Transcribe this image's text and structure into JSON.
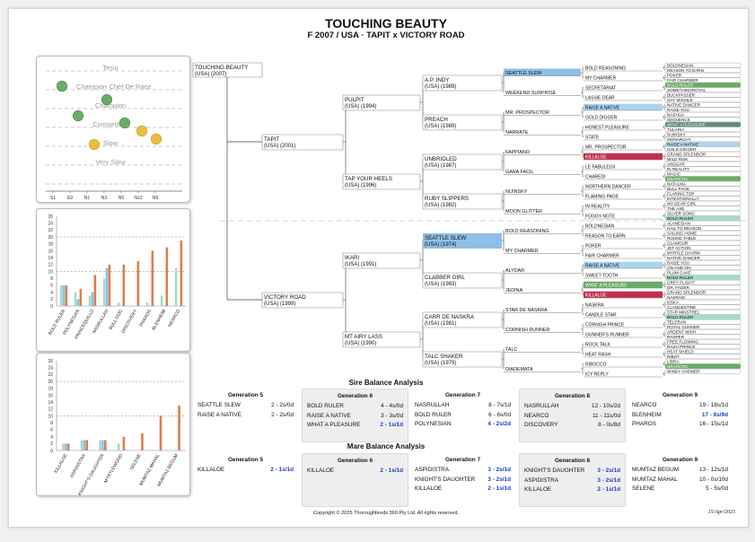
{
  "header": {
    "title": "TOUCHING BEAUTY",
    "subtitle": "F 2007 / USA · TAPIT x VICTORY ROAD"
  },
  "colors": {
    "blue": "#8fbfe6",
    "red": "#c0304e",
    "green": "#6aab66",
    "teal": "#5f8c7d",
    "mint": "#a6dbc6",
    "lightblue": "#a9d4f0",
    "orange": "#d9804a"
  },
  "scatter": {
    "levels": [
      "Tesio",
      "Champion",
      "Chef De Race",
      "Champion",
      "Competitive",
      "Slow",
      "Very Slow"
    ],
    "x_labels": [
      "S1",
      "E9",
      "N1",
      "N3",
      "N5",
      "N12",
      "N9"
    ],
    "points": [
      {
        "label": "S1",
        "level": "Champion",
        "color": "green"
      },
      {
        "label": "E9",
        "level": "Champion",
        "color": "green"
      },
      {
        "label": "N1",
        "level": "Champion",
        "color": "green"
      },
      {
        "label": "N3",
        "level": "Champion",
        "color": "green"
      },
      {
        "label": "N5",
        "level": "Competitive",
        "color": "yellow"
      },
      {
        "label": "N12",
        "level": "Competitive",
        "color": "yellow"
      },
      {
        "label": "N9",
        "level": "Competitive",
        "color": "yellow"
      }
    ]
  },
  "chart_data": [
    {
      "type": "bar",
      "title": "Sire Balance",
      "ylim": [
        0,
        26
      ],
      "yticks": [
        0,
        2,
        4,
        6,
        8,
        10,
        12,
        14,
        16,
        18,
        20,
        22,
        24,
        26
      ],
      "categories": [
        "BOLD RULER",
        "POLYNESIAN",
        "PRINCEQUILLO",
        "NASRULLAH",
        "BULL DOG",
        "DISCOVERY",
        "PHAROS",
        "BLENHEIM",
        "NEARCO"
      ],
      "series": [
        {
          "name": "s1",
          "color": "#a6dbc6",
          "values": [
            6,
            4,
            3,
            8,
            1,
            0,
            1,
            3,
            11
          ]
        },
        {
          "name": "s2",
          "color": "#8fbfe6",
          "values": [
            6,
            2,
            4,
            11,
            0,
            0,
            0,
            0,
            0
          ]
        },
        {
          "name": "s3",
          "color": "#d9804a",
          "values": [
            6,
            5,
            9,
            12,
            12,
            13,
            16,
            17,
            19
          ]
        }
      ]
    },
    {
      "type": "bar",
      "title": "Mare Balance",
      "ylim": [
        0,
        26
      ],
      "yticks": [
        0,
        2,
        4,
        6,
        8,
        10,
        12,
        14,
        16,
        18,
        20,
        22,
        24,
        26
      ],
      "categories": [
        "KILLALOE",
        "ASPIDISTRA",
        "KNIGHT'S DAUGHTER",
        "MYRTLEWOOD",
        "SELENE",
        "MUMTAZ MAHAL",
        "MUMTAZ BEGUM"
      ],
      "series": [
        {
          "name": "s1",
          "color": "#a6dbc6",
          "values": [
            2,
            3,
            3,
            2,
            0,
            0,
            0
          ]
        },
        {
          "name": "s2",
          "color": "#8fbfe6",
          "values": [
            2,
            3,
            3,
            0,
            0,
            0,
            0
          ]
        },
        {
          "name": "s3",
          "color": "#d9804a",
          "values": [
            2,
            3,
            3,
            4,
            5,
            10,
            13
          ]
        }
      ]
    }
  ],
  "pedigree": {
    "subject": {
      "name": "TOUCHING BEAUTY",
      "detail": "(USA) (2007)"
    },
    "g1": [
      {
        "name": "TAPIT",
        "detail": "(USA) (2001)"
      },
      {
        "name": "VICTORY ROAD",
        "detail": "(USA) (1999)"
      }
    ],
    "g2": [
      {
        "name": "PULPIT",
        "detail": "(USA) (1994)"
      },
      {
        "name": "TAP YOUR HEELS",
        "detail": "(USA) (1996)"
      },
      {
        "name": "IKARI",
        "detail": "(USA) (1991)"
      },
      {
        "name": "MT AIRY LASS",
        "detail": "(USA) (1990)"
      }
    ],
    "g3": [
      {
        "name": "A.P. INDY",
        "detail": "(USA) (1989)"
      },
      {
        "name": "PREACH",
        "detail": "(USA) (1989)"
      },
      {
        "name": "UNBRIDLED",
        "detail": "(USA) (1987)"
      },
      {
        "name": "RUBY SLIPPERS",
        "detail": "(USA) (1982)"
      },
      {
        "name": "SEATTLE SLEW",
        "detail": "(USA) (1974)",
        "hl": "blue"
      },
      {
        "name": "CLABBER GIRL",
        "detail": "(USA) (1983)"
      },
      {
        "name": "CARR DE NASKRA",
        "detail": "(USA) (1981)"
      },
      {
        "name": "TALC SHAKER",
        "detail": "(USA) (1979)"
      }
    ],
    "g4": [
      {
        "name": "SEATTLE SLEW",
        "hl": "blue"
      },
      {
        "name": "WEEKEND SURPRISE"
      },
      {
        "name": "MR. PROSPECTOR"
      },
      {
        "name": "NARRATE"
      },
      {
        "name": "FAPPIANO"
      },
      {
        "name": "GANA FACIL"
      },
      {
        "name": "NIJINSKY"
      },
      {
        "name": "MOON GLITTER"
      },
      {
        "name": "BOLD REASONING"
      },
      {
        "name": "MY CHARMER"
      },
      {
        "name": "ALYDAR"
      },
      {
        "name": "JEDINA"
      },
      {
        "name": "STAR DE NASKRA"
      },
      {
        "name": "CORNISH RUNNER"
      },
      {
        "name": "TALC"
      },
      {
        "name": "DIADEMATA"
      }
    ],
    "g5": [
      {
        "name": "BOLD REASONING"
      },
      {
        "name": "MY CHARMER"
      },
      {
        "name": "SECRETARIAT"
      },
      {
        "name": "LASSIE DEAR"
      },
      {
        "name": "RAISE A NATIVE",
        "hl": "lightblue"
      },
      {
        "name": "GOLD DIGGER"
      },
      {
        "name": "HONEST PLEASURE"
      },
      {
        "name": "STATE"
      },
      {
        "name": "MR. PROSPECTOR"
      },
      {
        "name": "KILLALOE",
        "hl": "red"
      },
      {
        "name": "LE FABULEUX"
      },
      {
        "name": "CHAREDI"
      },
      {
        "name": "NORTHERN DANCER"
      },
      {
        "name": "FLAMING PAGE"
      },
      {
        "name": "IN REALITY"
      },
      {
        "name": "FOGGY NOTE"
      },
      {
        "name": "BOLDNESIAN"
      },
      {
        "name": "REASON TO EARN"
      },
      {
        "name": "POKER"
      },
      {
        "name": "FAIR CHARMER"
      },
      {
        "name": "RAISE A NATIVE",
        "hl": "lightblue"
      },
      {
        "name": "SWEET TOOTH"
      },
      {
        "name": "WHAT A PLEASURE",
        "hl": "green"
      },
      {
        "name": "KILLALOE",
        "hl": "red"
      },
      {
        "name": "NASKRA"
      },
      {
        "name": "CANDLE STAR"
      },
      {
        "name": "CORNISH PRINCE"
      },
      {
        "name": "GUNNER'S RUNNER"
      },
      {
        "name": "ROCK TALK"
      },
      {
        "name": "HEAT RASH"
      },
      {
        "name": "RIBOCCO"
      },
      {
        "name": "ICY REPLY"
      }
    ],
    "g6": [
      {
        "name": "BOLDNESIAN"
      },
      {
        "name": "REASON TO EARN"
      },
      {
        "name": "POKER"
      },
      {
        "name": "FAIR CHARMER"
      },
      {
        "name": "BOLD RULER",
        "hl": "green"
      },
      {
        "name": "SOMETHINGROYAL"
      },
      {
        "name": "BUCKPASSER"
      },
      {
        "name": "GAY MISSILE"
      },
      {
        "name": "NATIVE DANCER"
      },
      {
        "name": "RAISE YOU"
      },
      {
        "name": "NASHUA"
      },
      {
        "name": "SEQUENCE"
      },
      {
        "name": "WHAT A PLEASURE",
        "hl": "teal"
      },
      {
        "name": "TULARIA"
      },
      {
        "name": "NIJINSKY"
      },
      {
        "name": "MONARCHY"
      },
      {
        "name": "RAISE A NATIVE",
        "hl": "lightblue"
      },
      {
        "name": "GOLD DIGGER"
      },
      {
        "name": "GRAND SPLENDOR"
      },
      {
        "name": "WILD RISK"
      },
      {
        "name": "ANGUAR"
      },
      {
        "name": "IN REALITY"
      },
      {
        "name": "MAGIC"
      },
      {
        "name": "NEARCTIC",
        "hl": "green"
      },
      {
        "name": "NATALMA"
      },
      {
        "name": "BULL PAGE"
      },
      {
        "name": "FLARING TOP"
      },
      {
        "name": "INTENTIONALLY"
      },
      {
        "name": "MY DEAR GIRL"
      },
      {
        "name": "THE AXE"
      },
      {
        "name": "SILVER SONG"
      },
      {
        "name": "BOLD RULER",
        "hl": "mint"
      },
      {
        "name": "ALANESIAN"
      },
      {
        "name": "HAIL TO REASON"
      },
      {
        "name": "SAILING HOME"
      },
      {
        "name": "ROUND TABLE"
      },
      {
        "name": "GLAMOUR"
      },
      {
        "name": "JET ACTION"
      },
      {
        "name": "MYRTLE CHARM"
      },
      {
        "name": "NATIVE DANCER"
      },
      {
        "name": "RAISE YOU"
      },
      {
        "name": "ON-AND-ON"
      },
      {
        "name": "PLUM CAKE"
      },
      {
        "name": "BOLD RULER",
        "hl": "mint"
      },
      {
        "name": "GREY FLIGHT"
      },
      {
        "name": "DR. FAGER"
      },
      {
        "name": "GRAND SPLENDOR"
      },
      {
        "name": "NASRAM"
      },
      {
        "name": "IIISKA"
      },
      {
        "name": "CLANDESTINE"
      },
      {
        "name": "STAR MINSTREL"
      },
      {
        "name": "BOLD RULER",
        "hl": "mint"
      },
      {
        "name": "TELERAN"
      },
      {
        "name": "ROYAL GUNNER"
      },
      {
        "name": "ARDENT WISH"
      },
      {
        "name": "RASPER"
      },
      {
        "name": "FREE FLOWING"
      },
      {
        "name": "RASH PRINCE"
      },
      {
        "name": "HEAT SHIELD"
      },
      {
        "name": "RIBOT"
      },
      {
        "name": "LIBRA"
      },
      {
        "name": "NEARCTIC",
        "hl": "green"
      },
      {
        "name": "WINDY ANSWER"
      }
    ]
  },
  "sire_balance": {
    "title": "Sire Balance Analysis",
    "generations": [
      {
        "label": "Generation 5",
        "items": [
          {
            "name": "SEATTLE SLEW",
            "value": "2 - 2s/0d"
          },
          {
            "name": "RAISE A NATIVE",
            "value": "2 - 2s/0d"
          }
        ]
      },
      {
        "label": "Generation 6",
        "items": [
          {
            "name": "BOLD RULER",
            "value": "4 - 4s/0d"
          },
          {
            "name": "RAISE A NATIVE",
            "value": "3 - 3s/0d"
          },
          {
            "name": "WHAT A PLEASURE",
            "value": "2 - 1s/1d",
            "blue": true
          }
        ]
      },
      {
        "label": "Generation 7",
        "items": [
          {
            "name": "NASRULLAH",
            "value": "8 - 7s/1d"
          },
          {
            "name": "BOLD RULER",
            "value": "6 - 6s/0d"
          },
          {
            "name": "POLYNESIAN",
            "value": "4 - 2s/2d",
            "blue": true
          }
        ]
      },
      {
        "label": "Generation 8",
        "items": [
          {
            "name": "NASRULLAH",
            "value": "12 - 10s/2d"
          },
          {
            "name": "NEARCO",
            "value": "11 - 11s/0d"
          },
          {
            "name": "DISCOVERY",
            "value": "8 - 0s/8d"
          }
        ]
      },
      {
        "label": "Generation 9",
        "items": [
          {
            "name": "NEARCO",
            "value": "19 - 18s/1d"
          },
          {
            "name": "BLENHEIM",
            "value": "17 - 8s/9d",
            "blue": true
          },
          {
            "name": "PHAROS",
            "value": "16 - 15s/1d"
          }
        ]
      }
    ]
  },
  "mare_balance": {
    "title": "Mare Balance Analysis",
    "generations": [
      {
        "label": "Generation 5",
        "items": [
          {
            "name": "KILLALOE",
            "value": "2 - 1s/1d",
            "blue": true
          }
        ]
      },
      {
        "label": "Generation 6",
        "items": [
          {
            "name": "KILLALOE",
            "value": "2 - 1s/1d",
            "blue": true
          }
        ]
      },
      {
        "label": "Generation 7",
        "items": [
          {
            "name": "ASPIDISTRA",
            "value": "3 - 2s/1d",
            "blue": true
          },
          {
            "name": "KNIGHT'S DAUGHTER",
            "value": "3 - 2s/1d",
            "blue": true
          },
          {
            "name": "KILLALOE",
            "value": "2 - 1s/1d",
            "blue": true
          }
        ]
      },
      {
        "label": "Generation 8",
        "items": [
          {
            "name": "KNIGHT'S DAUGHTER",
            "value": "3 - 2s/1d",
            "blue": true
          },
          {
            "name": "ASPIDISTRA",
            "value": "3 - 2s/1d",
            "blue": true
          },
          {
            "name": "KILLALOE",
            "value": "2 - 1s/1d",
            "blue": true
          }
        ]
      },
      {
        "label": "Generation 9",
        "items": [
          {
            "name": "MUMTAZ BEGUM",
            "value": "13 - 12s/1d"
          },
          {
            "name": "MUMTAZ MAHAL",
            "value": "10 - 0s/10d"
          },
          {
            "name": "SELENE",
            "value": "5 - 5s/0d"
          }
        ]
      }
    ]
  },
  "footer": {
    "copyright": "Copyright © 2025 Thoroughbreds 360 Pty Ltd. All rights reserved.",
    "date": "15/Apr/2025"
  }
}
